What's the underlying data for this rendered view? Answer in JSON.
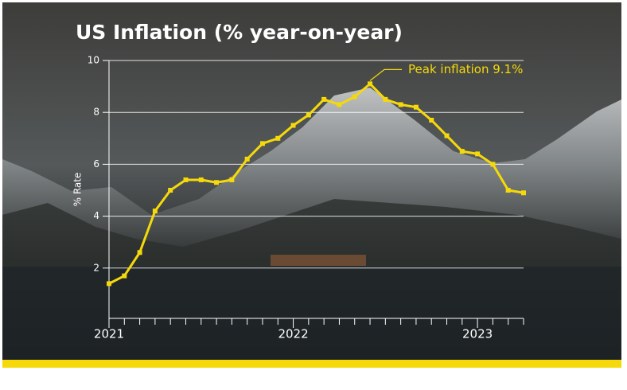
{
  "chart_data": {
    "type": "line",
    "title": "US Inflation (% year-on-year)",
    "y_label": "% Rate",
    "annotation": "Peak inflation 9.1%",
    "categories": [
      "2021",
      null,
      null,
      null,
      null,
      null,
      null,
      null,
      null,
      null,
      null,
      null,
      "2022",
      null,
      null,
      null,
      null,
      null,
      null,
      null,
      null,
      null,
      null,
      null,
      "2023",
      null,
      null,
      null
    ],
    "values": [
      1.4,
      1.7,
      2.6,
      4.2,
      5.0,
      5.4,
      5.4,
      5.3,
      5.4,
      6.2,
      6.8,
      7.0,
      7.5,
      7.9,
      8.5,
      8.3,
      8.6,
      9.1,
      8.5,
      8.3,
      8.2,
      7.7,
      7.1,
      6.5,
      6.4,
      6.0,
      5.0,
      4.9
    ],
    "color": "#f5d90a",
    "ylim": [
      0,
      10
    ],
    "yticks": [
      2,
      4,
      6,
      8,
      10
    ],
    "grid": true
  }
}
